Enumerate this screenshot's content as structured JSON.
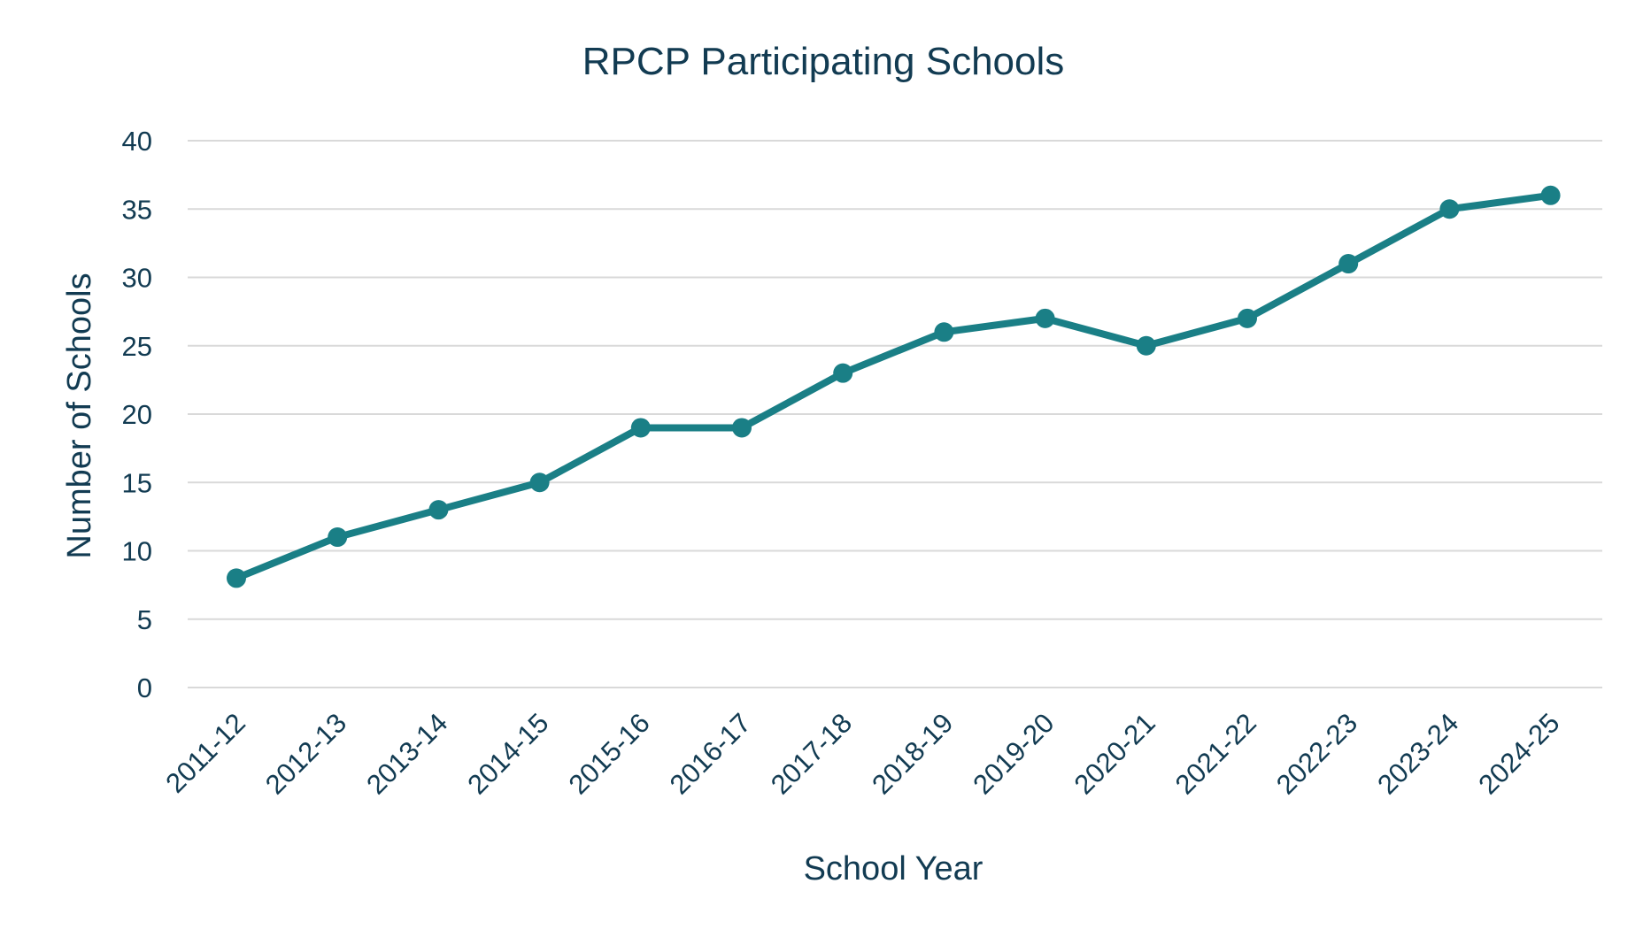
{
  "chart_data": {
    "type": "line",
    "title": "RPCP Participating Schools",
    "xlabel": "School Year",
    "ylabel": "Number of Schools",
    "categories": [
      "2011-12",
      "2012-13",
      "2013-14",
      "2014-15",
      "2015-16",
      "2016-17",
      "2017-18",
      "2018-19",
      "2019-20",
      "2020-21",
      "2021-22",
      "2022-23",
      "2023-24",
      "2024-25"
    ],
    "series": [
      {
        "name": "Number of Schools",
        "values": [
          8,
          11,
          13,
          15,
          19,
          19,
          23,
          26,
          27,
          25,
          27,
          31,
          35,
          36
        ]
      }
    ],
    "ylim": [
      0,
      40
    ],
    "yticks": [
      0,
      5,
      10,
      15,
      20,
      25,
      30,
      35,
      40
    ],
    "grid": true,
    "legend": "none",
    "colors": {
      "line": "#1a7f86",
      "text": "#123b52",
      "grid": "#d9d9d9"
    }
  }
}
